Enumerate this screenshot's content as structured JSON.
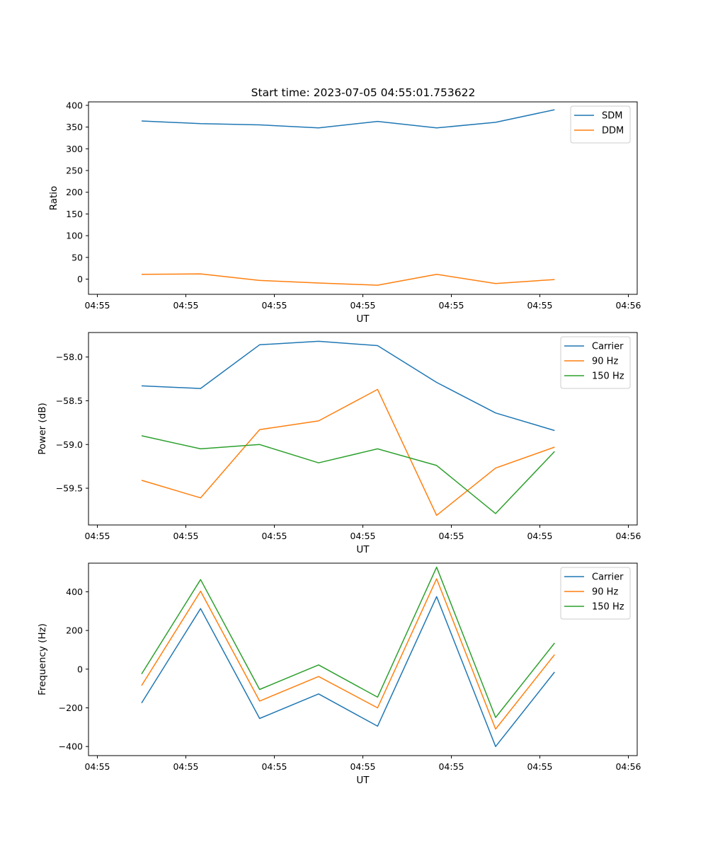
{
  "figure": {
    "title": "Start time: 2023-07-05 04:55:01.753622"
  },
  "colors": {
    "blue": "#1f77b4",
    "orange": "#ff7f0e",
    "green": "#2ca02c"
  },
  "chart_data": [
    {
      "type": "line",
      "title": "Start time: 2023-07-05 04:55:01.753622",
      "xlabel": "UT",
      "ylabel": "Ratio",
      "xlim": [
        -0.9,
        8.4
      ],
      "ylim": [
        -35,
        408
      ],
      "x": [
        0,
        1,
        2,
        3,
        4,
        5,
        6,
        7
      ],
      "xticks": [
        -0.75,
        0.75,
        2.25,
        3.75,
        5.25,
        6.75,
        8.25
      ],
      "xtick_labels": [
        "04:55",
        "04:55",
        "04:55",
        "04:55",
        "04:55",
        "04:55",
        "04:56"
      ],
      "yticks": [
        0,
        50,
        100,
        150,
        200,
        250,
        300,
        350,
        400
      ],
      "ytick_labels": [
        "0",
        "50",
        "100",
        "150",
        "200",
        "250",
        "300",
        "350",
        "400"
      ],
      "legend": "top-right",
      "series": [
        {
          "name": "SDM",
          "color": "blue",
          "values": [
            364,
            358,
            355,
            348,
            363,
            348,
            361,
            390
          ]
        },
        {
          "name": "DDM",
          "color": "orange",
          "values": [
            11,
            12,
            -3,
            -9,
            -14,
            11,
            -10,
            -1
          ]
        }
      ]
    },
    {
      "type": "line",
      "title": "",
      "xlabel": "UT",
      "ylabel": "Power (dB)",
      "xlim": [
        -0.9,
        8.4
      ],
      "ylim": [
        -59.92,
        -57.72
      ],
      "x": [
        0,
        1,
        2,
        3,
        4,
        5,
        6,
        7
      ],
      "xticks": [
        -0.75,
        0.75,
        2.25,
        3.75,
        5.25,
        6.75,
        8.25
      ],
      "xtick_labels": [
        "04:55",
        "04:55",
        "04:55",
        "04:55",
        "04:55",
        "04:55",
        "04:56"
      ],
      "yticks": [
        -59.5,
        -59.0,
        -58.5,
        -58.0
      ],
      "ytick_labels": [
        "−59.5",
        "−59.0",
        "−58.5",
        "−58.0"
      ],
      "legend": "top-right",
      "series": [
        {
          "name": "Carrier",
          "color": "blue",
          "values": [
            -58.33,
            -58.36,
            -57.86,
            -57.82,
            -57.87,
            -58.29,
            -58.64,
            -58.84
          ]
        },
        {
          "name": "90 Hz",
          "color": "orange",
          "values": [
            -59.41,
            -59.61,
            -58.83,
            -58.73,
            -58.37,
            -59.81,
            -59.27,
            -59.03
          ]
        },
        {
          "name": "150 Hz",
          "color": "green",
          "values": [
            -58.9,
            -59.05,
            -59.0,
            -59.21,
            -59.05,
            -59.24,
            -59.79,
            -59.08
          ]
        }
      ]
    },
    {
      "type": "line",
      "title": "",
      "xlabel": "UT",
      "ylabel": "Frequency (Hz)",
      "xlim": [
        -0.9,
        8.4
      ],
      "ylim": [
        -447,
        548
      ],
      "x": [
        0,
        1,
        2,
        3,
        4,
        5,
        6,
        7
      ],
      "xticks": [
        -0.75,
        0.75,
        2.25,
        3.75,
        5.25,
        6.75,
        8.25
      ],
      "xtick_labels": [
        "04:55",
        "04:55",
        "04:55",
        "04:55",
        "04:55",
        "04:55",
        "04:56"
      ],
      "yticks": [
        -400,
        -200,
        0,
        200,
        400
      ],
      "ytick_labels": [
        "−400",
        "−200",
        "0",
        "200",
        "400"
      ],
      "legend": "top-right",
      "series": [
        {
          "name": "Carrier",
          "color": "blue",
          "values": [
            -175,
            313,
            -255,
            -128,
            -295,
            375,
            -400,
            -15
          ]
        },
        {
          "name": "90 Hz",
          "color": "orange",
          "values": [
            -85,
            403,
            -165,
            -38,
            -200,
            467,
            -310,
            75
          ]
        },
        {
          "name": "150 Hz",
          "color": "green",
          "values": [
            -25,
            463,
            -105,
            22,
            -145,
            527,
            -250,
            135
          ]
        }
      ]
    }
  ]
}
